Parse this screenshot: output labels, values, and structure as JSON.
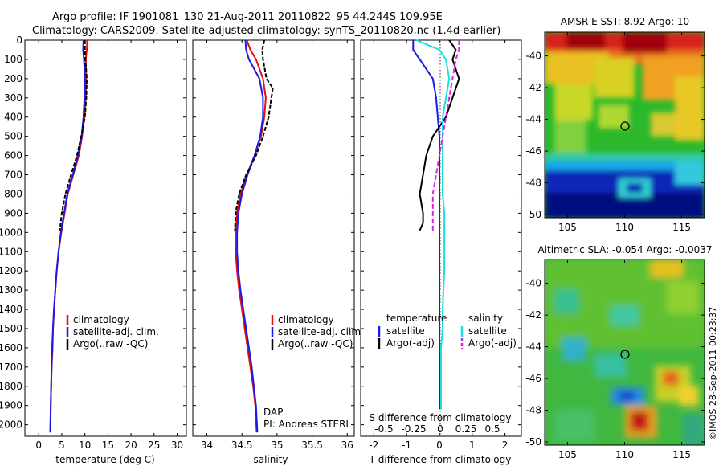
{
  "header": {
    "line1": "Argo profile: IF 1901081_130 21-Aug-2011 20110822_95 44.244S 109.95E",
    "line2": "Climatology: CARS2009. Satellite-adjusted climatology: synTS_20110820.nc (1.4d earlier)"
  },
  "colors": {
    "climatology": "#e01010",
    "satellite": "#1a1ae6",
    "argo": "#000000",
    "sal_sat": "#18e0e0",
    "sal_argo": "#e020e0"
  },
  "chart_data": [
    {
      "type": "line",
      "title": "",
      "xlabel": "temperature (deg C)",
      "ylabel": "",
      "xlim": [
        -3,
        32
      ],
      "ylim": [
        2060,
        0
      ],
      "xticks": [
        0,
        5,
        10,
        15,
        20,
        25,
        30
      ],
      "yticks": [
        0,
        100,
        200,
        300,
        400,
        500,
        600,
        700,
        800,
        900,
        1000,
        1100,
        1200,
        1300,
        1400,
        1500,
        1600,
        1700,
        1800,
        1900,
        2000
      ],
      "legend": [
        "climatology",
        "satellite-adj. clim.",
        "Argo(..raw -QC)"
      ],
      "legend_position": "lower-center",
      "series": [
        {
          "name": "climatology",
          "x": [
            10.5,
            10.4,
            10.2,
            10.3,
            10.2,
            9.9,
            9.4,
            8.7,
            7.5,
            6.3,
            5.6,
            4.9,
            4.3,
            3.9,
            3.6,
            3.3,
            3.1,
            3.0,
            2.8,
            2.7,
            2.6,
            2.5
          ],
          "y": [
            0,
            50,
            100,
            200,
            300,
            400,
            500,
            600,
            700,
            800,
            900,
            1000,
            1100,
            1200,
            1300,
            1400,
            1500,
            1600,
            1700,
            1800,
            1900,
            2040
          ]
        },
        {
          "name": "satellite-adj. clim.",
          "x": [
            9.7,
            9.6,
            9.8,
            10.0,
            9.9,
            9.7,
            9.3,
            8.5,
            7.4,
            6.2,
            5.5,
            4.8,
            4.3,
            3.9,
            3.6,
            3.3,
            3.1,
            2.9,
            2.8,
            2.7,
            2.6,
            2.5
          ],
          "y": [
            0,
            50,
            100,
            200,
            300,
            400,
            500,
            600,
            700,
            800,
            900,
            1000,
            1100,
            1200,
            1300,
            1400,
            1500,
            1600,
            1700,
            1800,
            1900,
            2040
          ]
        },
        {
          "name": "Argo(..raw -QC)",
          "x": [
            10.0,
            10.0,
            10.1,
            10.4,
            10.3,
            10.0,
            9.2,
            8.3,
            7.0,
            5.8,
            5.0,
            4.6
          ],
          "y": [
            0,
            50,
            100,
            200,
            300,
            400,
            500,
            600,
            700,
            800,
            900,
            990
          ]
        }
      ]
    },
    {
      "type": "line",
      "title": "",
      "xlabel": "salinity",
      "ylabel": "",
      "xlim": [
        33.8,
        36.1
      ],
      "ylim": [
        2060,
        0
      ],
      "xticks": [
        34,
        34.5,
        35,
        35.5,
        36
      ],
      "legend": [
        "climatology",
        "satellite-adj. clim.",
        "Argo(..raw -QC)"
      ],
      "legend_position": "lower-center",
      "annotations": [
        "DAP",
        "PI: Andreas STERL"
      ],
      "series": [
        {
          "name": "climatology",
          "x": [
            34.57,
            34.62,
            34.7,
            34.8,
            34.84,
            34.82,
            34.77,
            34.68,
            34.57,
            34.48,
            34.43,
            34.41,
            34.41,
            34.43,
            34.46,
            34.5,
            34.54,
            34.58,
            34.62,
            34.66,
            34.69,
            34.71
          ],
          "y": [
            0,
            50,
            100,
            200,
            300,
            400,
            500,
            600,
            700,
            800,
            900,
            1000,
            1100,
            1200,
            1300,
            1400,
            1500,
            1600,
            1700,
            1800,
            1900,
            2040
          ]
        },
        {
          "name": "satellite-adj. clim.",
          "x": [
            34.55,
            34.56,
            34.6,
            34.75,
            34.8,
            34.8,
            34.76,
            34.68,
            34.58,
            34.5,
            34.45,
            34.43,
            34.43,
            34.45,
            34.48,
            34.52,
            34.56,
            34.6,
            34.64,
            34.67,
            34.7,
            34.72
          ],
          "y": [
            0,
            50,
            100,
            200,
            300,
            400,
            500,
            600,
            700,
            800,
            900,
            1000,
            1100,
            1200,
            1300,
            1400,
            1500,
            1600,
            1700,
            1800,
            1900,
            2040
          ]
        },
        {
          "name": "Argo(..raw -QC)",
          "x": [
            34.82,
            34.79,
            34.8,
            34.85,
            34.94,
            34.88,
            34.8,
            34.7,
            34.56,
            34.46,
            34.41,
            34.4
          ],
          "y": [
            0,
            50,
            100,
            200,
            250,
            400,
            500,
            600,
            700,
            800,
            900,
            990
          ]
        }
      ]
    },
    {
      "type": "line",
      "title": "S difference from climatology",
      "xlabel": "T difference from climatology",
      "ylabel": "",
      "xlim": [
        -2.4,
        2.5
      ],
      "ylim": [
        2060,
        0
      ],
      "xticks": [
        -2,
        -1,
        0,
        1,
        2
      ],
      "top_ticks": [
        "-0.5",
        "-0.25",
        "0",
        "0.25",
        "0.5"
      ],
      "legend_groups": [
        "temperature",
        "salinity"
      ],
      "legend": [
        "satellite",
        "Argo(-adj)",
        "satellite",
        "Argo(-adj)"
      ],
      "legend_position": "lower-center",
      "series": [
        {
          "name": "satellite",
          "group": "temperature",
          "x": [
            -0.8,
            -0.8,
            -0.6,
            -0.2,
            -0.1,
            -0.05,
            0.0,
            0.0,
            0.0,
            0.0,
            0.0,
            0.0,
            0.0,
            0.0,
            0.0,
            0.0,
            0.0,
            0.0,
            0.0,
            0.0,
            0.0
          ],
          "y": [
            0,
            50,
            100,
            200,
            300,
            400,
            500,
            600,
            700,
            800,
            900,
            1000,
            1100,
            1200,
            1300,
            1400,
            1500,
            1600,
            1700,
            1800,
            1920
          ]
        },
        {
          "name": "Argo(-adj)",
          "group": "temperature",
          "x": [
            0.3,
            0.5,
            0.4,
            0.6,
            0.4,
            0.2,
            -0.2,
            -0.4,
            -0.5,
            -0.6,
            -0.5,
            -0.5,
            -0.6
          ],
          "y": [
            0,
            50,
            100,
            200,
            300,
            400,
            500,
            600,
            700,
            800,
            900,
            950,
            990
          ]
        },
        {
          "name": "satellite",
          "group": "salinity",
          "x": [
            -0.7,
            0.0,
            0.2,
            0.3,
            0.2,
            0.1,
            0.1,
            0.1,
            0.1,
            0.1,
            0.15,
            0.15,
            0.15,
            0.15,
            0.12,
            0.1,
            0.1,
            0.05,
            0.05,
            0.05,
            0.05
          ],
          "y": [
            0,
            50,
            100,
            200,
            300,
            400,
            500,
            600,
            700,
            800,
            900,
            1000,
            1100,
            1200,
            1300,
            1400,
            1500,
            1600,
            1700,
            1800,
            1920
          ]
        },
        {
          "name": "Argo(-adj)",
          "group": "salinity",
          "x": [
            0.6,
            0.6,
            0.5,
            0.4,
            0.3,
            0.2,
            0.1,
            0.0,
            -0.1,
            -0.2,
            -0.2,
            -0.2
          ],
          "y": [
            0,
            50,
            100,
            200,
            300,
            400,
            500,
            600,
            700,
            800,
            900,
            990
          ]
        }
      ]
    },
    {
      "type": "heatmap",
      "title": "AMSR-E SST: 8.92 Argo: 10",
      "xlim": [
        103,
        117
      ],
      "ylim": [
        -50.2,
        -38.5
      ],
      "xticks": [
        105,
        110,
        115
      ],
      "yticks": [
        -40,
        -42,
        -44,
        -46,
        -48,
        -50
      ],
      "marker": {
        "x": 109.95,
        "y": -44.244
      }
    },
    {
      "type": "heatmap",
      "title": "Altimetric SLA: -0.054 Argo: -0.0037",
      "xlim": [
        103,
        117
      ],
      "ylim": [
        -50.2,
        -38.5
      ],
      "xticks": [
        105,
        110,
        115
      ],
      "yticks": [
        -40,
        -42,
        -44,
        -46,
        -48,
        -50
      ],
      "marker": {
        "x": 109.95,
        "y": -44.244
      }
    }
  ],
  "credit": "©IMOS 28-Sep-2011 00:23:37"
}
